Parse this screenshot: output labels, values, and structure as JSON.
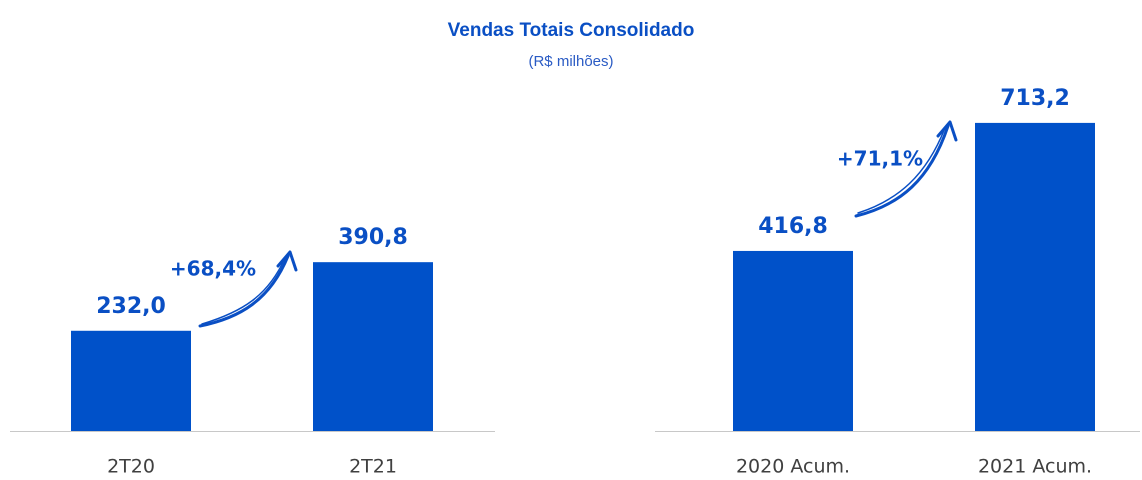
{
  "title": "Vendas Totais Consolidado",
  "subtitle": "(R$ milhões)",
  "chart_data": [
    {
      "type": "bar",
      "categories": [
        "2T20",
        "2T21"
      ],
      "values": [
        232.0,
        390.8
      ],
      "value_labels": [
        "232,0",
        "390,8"
      ],
      "color": "#0051c9",
      "ylim": [
        0,
        800
      ],
      "annotation": "+68,4%"
    },
    {
      "type": "bar",
      "categories": [
        "2020 Acum.",
        "2021 Acum."
      ],
      "values": [
        416.8,
        713.2
      ],
      "value_labels": [
        "416,8",
        "713,2"
      ],
      "color": "#0051c9",
      "ylim": [
        0,
        800
      ],
      "annotation": "+71,1%"
    }
  ]
}
